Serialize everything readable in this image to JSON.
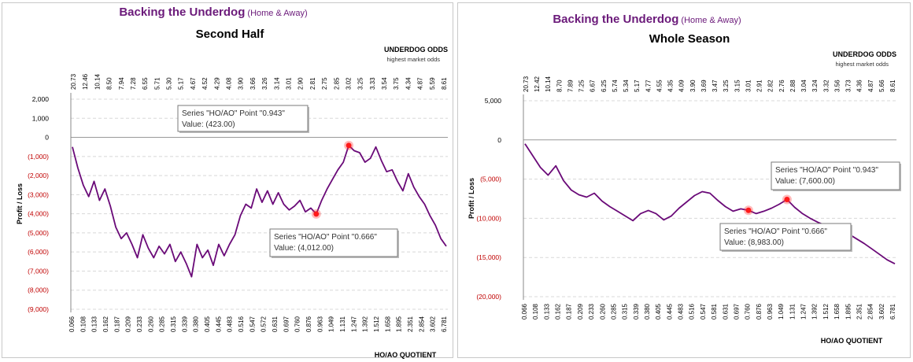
{
  "charts": [
    {
      "title_main": "Backing the Underdog",
      "title_paren": "(Home & Away)",
      "subtitle": "Second Half",
      "top_axis_title": "UNDERDOG ODDS",
      "top_axis_subtitle": "highest market odds",
      "ylabel": "Profit / Loss",
      "xlabel": "HO/AO QUOTIENT",
      "yticks": [
        2000,
        1000,
        0,
        -1000,
        -2000,
        -3000,
        -4000,
        -5000,
        -6000,
        -7000,
        -8000,
        -9000
      ],
      "ytick_labels": [
        "2,000",
        "1,000",
        "0",
        "(1,000)",
        "(2,000)",
        "(3,000)",
        "(4,000)",
        "(5,000)",
        "(6,000)",
        "(7,000)",
        "(8,000)",
        "(9,000)"
      ],
      "top_ticks": [
        "20.73",
        "12.46",
        "10.14",
        "8.50",
        "7.94",
        "7.28",
        "6.55",
        "5.71",
        "5.30",
        "5.17",
        "4.67",
        "4.52",
        "4.29",
        "4.08",
        "3.90",
        "3.66",
        "3.26",
        "3.14",
        "3.01",
        "2.90",
        "2.81",
        "2.75",
        "2.85",
        "3.02",
        "3.25",
        "3.33",
        "3.54",
        "3.75",
        "4.34",
        "4.87",
        "5.59",
        "8.61"
      ],
      "bottom_ticks": [
        "0.066",
        "0.108",
        "0.133",
        "0.162",
        "0.187",
        "0.209",
        "0.233",
        "0.260",
        "0.285",
        "0.315",
        "0.339",
        "0.380",
        "0.405",
        "0.445",
        "0.483",
        "0.516",
        "0.547",
        "0.572",
        "0.631",
        "0.697",
        "0.760",
        "0.876",
        "0.963",
        "1.049",
        "1.131",
        "1.247",
        "1.392",
        "1.512",
        "1.658",
        "1.895",
        "2.351",
        "2.854",
        "3.602",
        "6.781"
      ],
      "callouts": [
        {
          "line1": "Series \"HO/AO\" Point \"0.943\"",
          "line2": "Value: (423.00)"
        },
        {
          "line1": "Series \"HO/AO\" Point \"0.666\"",
          "line2": "Value: (4,012.00)"
        }
      ]
    },
    {
      "title_main": "Backing the Underdog",
      "title_paren": "(Home & Away)",
      "subtitle": "Whole Season",
      "top_axis_title": "UNDERDOG ODDS",
      "top_axis_subtitle": "highest market odds",
      "ylabel": "Profit / Loss",
      "xlabel": "HO/AO QUOTIENT",
      "yticks": [
        5000,
        0,
        -5000,
        -10000,
        -15000,
        -20000
      ],
      "ytick_labels": [
        "5,000",
        "0",
        "(5,000)",
        "(10,000)",
        "(15,000)",
        "(20,000)"
      ],
      "top_ticks": [
        "20.73",
        "12.42",
        "10.14",
        "8.70",
        "7.89",
        "7.25",
        "6.67",
        "6.25",
        "5.74",
        "5.34",
        "5.17",
        "4.77",
        "4.55",
        "4.35",
        "4.09",
        "3.90",
        "3.69",
        "3.47",
        "3.25",
        "3.15",
        "3.01",
        "2.91",
        "2.82",
        "2.76",
        "2.88",
        "3.04",
        "3.24",
        "3.32",
        "3.56",
        "3.73",
        "4.36",
        "4.87",
        "5.66",
        "8.61"
      ],
      "bottom_ticks": [
        "0.066",
        "0.108",
        "0.133",
        "0.162",
        "0.187",
        "0.209",
        "0.233",
        "0.260",
        "0.285",
        "0.315",
        "0.339",
        "0.380",
        "0.405",
        "0.445",
        "0.483",
        "0.516",
        "0.547",
        "0.581",
        "0.631",
        "0.697",
        "0.760",
        "0.876",
        "0.963",
        "1.049",
        "1.131",
        "1.247",
        "1.392",
        "1.512",
        "1.658",
        "1.895",
        "2.351",
        "2.854",
        "3.602",
        "6.781"
      ],
      "callouts": [
        {
          "line1": "Series \"HO/AO\" Point \"0.943\"",
          "line2": "Value: (7,600.00)"
        },
        {
          "line1": "Series \"HO/AO\" Point \"0.666\"",
          "line2": "Value: (8,983.00)"
        }
      ]
    }
  ],
  "chart_data": [
    {
      "type": "line",
      "series": [
        {
          "name": "HO/AO",
          "color": "#6a0a78",
          "values": [
            -500,
            -1600,
            -2500,
            -3100,
            -2300,
            -3300,
            -2700,
            -3600,
            -4700,
            -5300,
            -5000,
            -5600,
            -6300,
            -5100,
            -5800,
            -6300,
            -5700,
            -6100,
            -5600,
            -6500,
            -6000,
            -6600,
            -7300,
            -5600,
            -6300,
            -5900,
            -6700,
            -5600,
            -6200,
            -5600,
            -5100,
            -4100,
            -3500,
            -3700,
            -2700,
            -3400,
            -2800,
            -3500,
            -2900,
            -3500,
            -3800,
            -3600,
            -3300,
            -3900,
            -3700,
            -4012,
            -3300,
            -2700,
            -2200,
            -1700,
            -1300,
            -423,
            -700,
            -800,
            -1300,
            -1100,
            -500,
            -1200,
            -1800,
            -1700,
            -2300,
            -2800,
            -1900,
            -2600,
            -3100,
            -3500,
            -4100,
            -4600,
            -5300,
            -5700
          ]
        }
      ],
      "ylim": [
        -9000,
        2000
      ],
      "highlighted_points": [
        {
          "x": "0.943",
          "y": -423
        },
        {
          "x": "0.666",
          "y": -4012
        }
      ]
    },
    {
      "type": "line",
      "series": [
        {
          "name": "HO/AO",
          "color": "#6a0a78",
          "values": [
            -500,
            -2000,
            -3500,
            -4500,
            -3300,
            -5200,
            -6400,
            -7000,
            -7300,
            -6800,
            -7800,
            -8500,
            -9100,
            -9700,
            -10300,
            -9400,
            -9000,
            -9400,
            -10200,
            -9700,
            -8700,
            -7900,
            -7100,
            -6600,
            -6800,
            -7700,
            -8500,
            -9100,
            -8800,
            -8983,
            -9400,
            -9100,
            -8700,
            -8200,
            -7600,
            -8600,
            -9400,
            -10000,
            -10500,
            -10900,
            -11200,
            -11600,
            -12000,
            -12600,
            -13200,
            -13900,
            -14600,
            -15300,
            -15800
          ]
        }
      ],
      "ylim": [
        -20000,
        5000
      ],
      "highlighted_points": [
        {
          "x": "0.943",
          "y": -7600
        },
        {
          "x": "0.666",
          "y": -8983
        }
      ]
    }
  ]
}
